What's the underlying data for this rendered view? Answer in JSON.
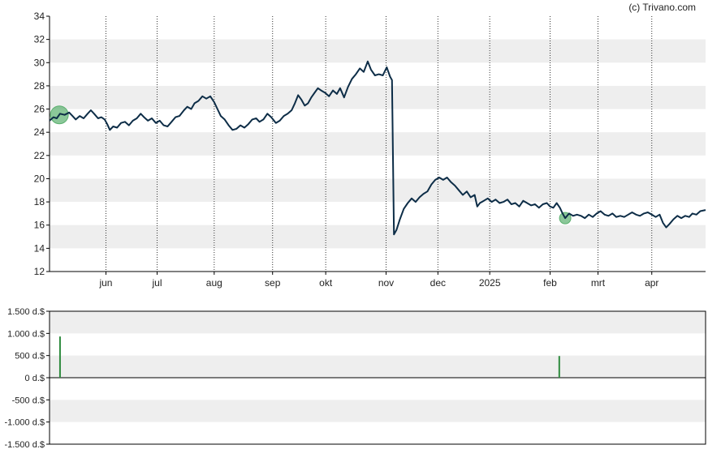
{
  "watermark": "(c) Trivano.com",
  "colors": {
    "line": "#0d2d47",
    "band": "#eeeeee",
    "axis": "#000000",
    "marker": "#5aaf6e",
    "volume_bar": "#2e8b3e"
  },
  "chart_data": [
    {
      "type": "line",
      "title": "",
      "ylim": [
        12,
        34
      ],
      "yticks": [
        "12",
        "14",
        "16",
        "18",
        "20",
        "22",
        "24",
        "26",
        "28",
        "30",
        "32",
        "34"
      ],
      "xlim": [
        0,
        100
      ],
      "xticks": [
        {
          "label": "jun",
          "x": 8.6
        },
        {
          "label": "jul",
          "x": 16.4
        },
        {
          "label": "aug",
          "x": 25.1
        },
        {
          "label": "sep",
          "x": 34.0
        },
        {
          "label": "okt",
          "x": 42.1
        },
        {
          "label": "nov",
          "x": 51.3
        },
        {
          "label": "dec",
          "x": 59.2
        },
        {
          "label": "2025",
          "x": 67.1
        },
        {
          "label": "feb",
          "x": 76.3
        },
        {
          "label": "mrt",
          "x": 83.6
        },
        {
          "label": "apr",
          "x": 91.8
        }
      ],
      "series": [
        {
          "points": [
            [
              0.0,
              25.0
            ],
            [
              0.6,
              25.3
            ],
            [
              1.1,
              25.2
            ],
            [
              1.6,
              25.6
            ],
            [
              2.3,
              25.5
            ],
            [
              3.0,
              25.7
            ],
            [
              3.5,
              25.4
            ],
            [
              4.0,
              25.1
            ],
            [
              4.6,
              25.4
            ],
            [
              5.2,
              25.2
            ],
            [
              5.8,
              25.6
            ],
            [
              6.3,
              25.9
            ],
            [
              6.8,
              25.6
            ],
            [
              7.4,
              25.2
            ],
            [
              7.9,
              25.3
            ],
            [
              8.4,
              25.1
            ],
            [
              8.8,
              24.7
            ],
            [
              9.2,
              24.2
            ],
            [
              9.7,
              24.5
            ],
            [
              10.3,
              24.4
            ],
            [
              10.9,
              24.8
            ],
            [
              11.5,
              24.9
            ],
            [
              12.1,
              24.6
            ],
            [
              12.7,
              25.0
            ],
            [
              13.3,
              25.2
            ],
            [
              13.9,
              25.6
            ],
            [
              14.4,
              25.3
            ],
            [
              15.0,
              25.0
            ],
            [
              15.6,
              25.2
            ],
            [
              16.2,
              24.8
            ],
            [
              16.8,
              25.0
            ],
            [
              17.4,
              24.6
            ],
            [
              18.0,
              24.5
            ],
            [
              18.6,
              24.9
            ],
            [
              19.2,
              25.3
            ],
            [
              19.8,
              25.4
            ],
            [
              20.5,
              25.9
            ],
            [
              21.0,
              26.2
            ],
            [
              21.6,
              26.0
            ],
            [
              22.1,
              26.5
            ],
            [
              22.7,
              26.7
            ],
            [
              23.3,
              27.1
            ],
            [
              23.9,
              26.9
            ],
            [
              24.5,
              27.1
            ],
            [
              25.1,
              26.6
            ],
            [
              25.6,
              26.0
            ],
            [
              26.1,
              25.4
            ],
            [
              26.7,
              25.1
            ],
            [
              27.3,
              24.6
            ],
            [
              27.9,
              24.2
            ],
            [
              28.5,
              24.3
            ],
            [
              29.1,
              24.6
            ],
            [
              29.7,
              24.4
            ],
            [
              30.3,
              24.7
            ],
            [
              30.9,
              25.1
            ],
            [
              31.5,
              25.2
            ],
            [
              32.0,
              24.9
            ],
            [
              32.6,
              25.1
            ],
            [
              33.2,
              25.6
            ],
            [
              33.8,
              25.3
            ],
            [
              34.5,
              24.8
            ],
            [
              35.1,
              25.0
            ],
            [
              35.7,
              25.4
            ],
            [
              36.3,
              25.6
            ],
            [
              36.9,
              25.9
            ],
            [
              37.4,
              26.5
            ],
            [
              37.9,
              27.2
            ],
            [
              38.4,
              26.8
            ],
            [
              38.9,
              26.3
            ],
            [
              39.4,
              26.5
            ],
            [
              39.9,
              27.0
            ],
            [
              40.4,
              27.4
            ],
            [
              40.9,
              27.8
            ],
            [
              41.4,
              27.6
            ],
            [
              42.0,
              27.4
            ],
            [
              42.6,
              27.1
            ],
            [
              43.2,
              27.6
            ],
            [
              43.8,
              27.3
            ],
            [
              44.3,
              27.8
            ],
            [
              44.9,
              27.0
            ],
            [
              45.5,
              27.9
            ],
            [
              46.1,
              28.6
            ],
            [
              46.7,
              29.0
            ],
            [
              47.3,
              29.5
            ],
            [
              47.9,
              29.2
            ],
            [
              48.5,
              30.1
            ],
            [
              49.0,
              29.4
            ],
            [
              49.6,
              28.9
            ],
            [
              50.2,
              29.0
            ],
            [
              50.8,
              28.9
            ],
            [
              51.4,
              29.6
            ],
            [
              51.9,
              28.8
            ],
            [
              52.2,
              28.5
            ],
            [
              52.5,
              15.2
            ],
            [
              52.9,
              15.6
            ],
            [
              53.4,
              16.5
            ],
            [
              54.0,
              17.4
            ],
            [
              54.6,
              17.9
            ],
            [
              55.2,
              18.3
            ],
            [
              55.8,
              18.0
            ],
            [
              56.4,
              18.4
            ],
            [
              57.0,
              18.7
            ],
            [
              57.6,
              18.9
            ],
            [
              58.2,
              19.5
            ],
            [
              58.8,
              19.9
            ],
            [
              59.4,
              20.1
            ],
            [
              60.0,
              19.9
            ],
            [
              60.6,
              20.1
            ],
            [
              61.2,
              19.7
            ],
            [
              61.8,
              19.4
            ],
            [
              62.4,
              19.0
            ],
            [
              63.0,
              18.6
            ],
            [
              63.6,
              18.9
            ],
            [
              64.2,
              18.4
            ],
            [
              64.8,
              18.6
            ],
            [
              65.2,
              17.6
            ],
            [
              65.6,
              17.9
            ],
            [
              66.2,
              18.1
            ],
            [
              66.8,
              18.3
            ],
            [
              67.4,
              18.0
            ],
            [
              68.0,
              18.2
            ],
            [
              68.6,
              17.9
            ],
            [
              69.2,
              18.0
            ],
            [
              69.8,
              18.2
            ],
            [
              70.4,
              17.8
            ],
            [
              71.0,
              17.9
            ],
            [
              71.6,
              17.6
            ],
            [
              72.2,
              18.1
            ],
            [
              72.8,
              17.9
            ],
            [
              73.4,
              17.7
            ],
            [
              74.0,
              17.8
            ],
            [
              74.6,
              17.5
            ],
            [
              75.2,
              17.8
            ],
            [
              75.8,
              17.9
            ],
            [
              76.3,
              17.6
            ],
            [
              76.8,
              17.5
            ],
            [
              77.3,
              17.9
            ],
            [
              77.8,
              17.5
            ],
            [
              78.2,
              17.0
            ],
            [
              78.6,
              16.6
            ],
            [
              79.2,
              17.0
            ],
            [
              79.8,
              16.8
            ],
            [
              80.4,
              16.9
            ],
            [
              81.0,
              16.8
            ],
            [
              81.6,
              16.6
            ],
            [
              82.2,
              16.9
            ],
            [
              82.8,
              16.7
            ],
            [
              83.4,
              17.0
            ],
            [
              84.0,
              17.2
            ],
            [
              84.6,
              16.9
            ],
            [
              85.2,
              16.8
            ],
            [
              85.8,
              17.0
            ],
            [
              86.4,
              16.7
            ],
            [
              87.0,
              16.8
            ],
            [
              87.6,
              16.7
            ],
            [
              88.2,
              16.9
            ],
            [
              88.8,
              17.1
            ],
            [
              89.4,
              16.9
            ],
            [
              90.0,
              16.8
            ],
            [
              90.6,
              17.0
            ],
            [
              91.2,
              17.1
            ],
            [
              91.8,
              16.9
            ],
            [
              92.4,
              16.7
            ],
            [
              93.0,
              16.9
            ],
            [
              93.5,
              16.2
            ],
            [
              94.0,
              15.8
            ],
            [
              94.5,
              16.1
            ],
            [
              95.1,
              16.5
            ],
            [
              95.7,
              16.8
            ],
            [
              96.3,
              16.6
            ],
            [
              96.9,
              16.8
            ],
            [
              97.5,
              16.7
            ],
            [
              98.0,
              17.0
            ],
            [
              98.6,
              16.9
            ],
            [
              99.2,
              17.2
            ],
            [
              100.0,
              17.3
            ]
          ]
        }
      ],
      "markers": [
        {
          "x": 1.5,
          "y": 25.5,
          "size": "large"
        },
        {
          "x": 78.6,
          "y": 16.6,
          "size": "small"
        }
      ],
      "grid": "alternating-bands-and-dotted-month-lines"
    },
    {
      "type": "bar",
      "title": "",
      "ylim": [
        -1500,
        1500
      ],
      "yticks": [
        "1.500 d.$",
        "1.000 d.$",
        "500 d.$",
        "0 d.$",
        "-500 d.$",
        "-1.000 d.$",
        "-1.500 d.$"
      ],
      "xlim": [
        0,
        100
      ],
      "bars": [
        {
          "x": 1.6,
          "value": 930
        },
        {
          "x": 77.7,
          "value": 490
        }
      ]
    }
  ]
}
